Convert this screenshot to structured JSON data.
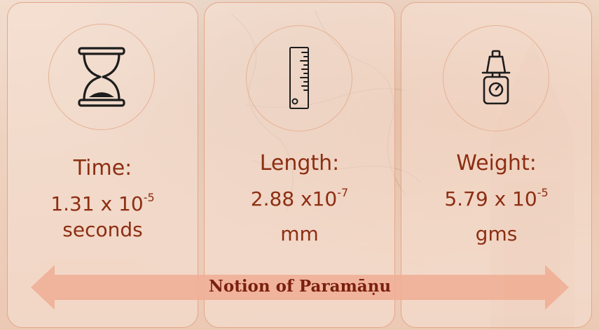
{
  "cards": [
    {
      "icon": "hourglass-icon",
      "label": "Time:",
      "value_base": "1.31 x 10",
      "value_exp": "-5",
      "unit": "seconds"
    },
    {
      "icon": "ruler-icon",
      "label": "Length:",
      "value_base": "2.88 x10",
      "value_exp": "-7",
      "unit": "mm"
    },
    {
      "icon": "weighing-scale-icon",
      "label": "Weight:",
      "value_base": "5.79 x 10",
      "value_exp": "-5",
      "unit": "gms"
    }
  ],
  "banner": {
    "text": "Notion of Paramāṇu"
  },
  "colors": {
    "accent": "#8c2e12",
    "banner_fill": "#f0b097",
    "card_border": "#e2a78a",
    "background": "#f2dccb"
  }
}
